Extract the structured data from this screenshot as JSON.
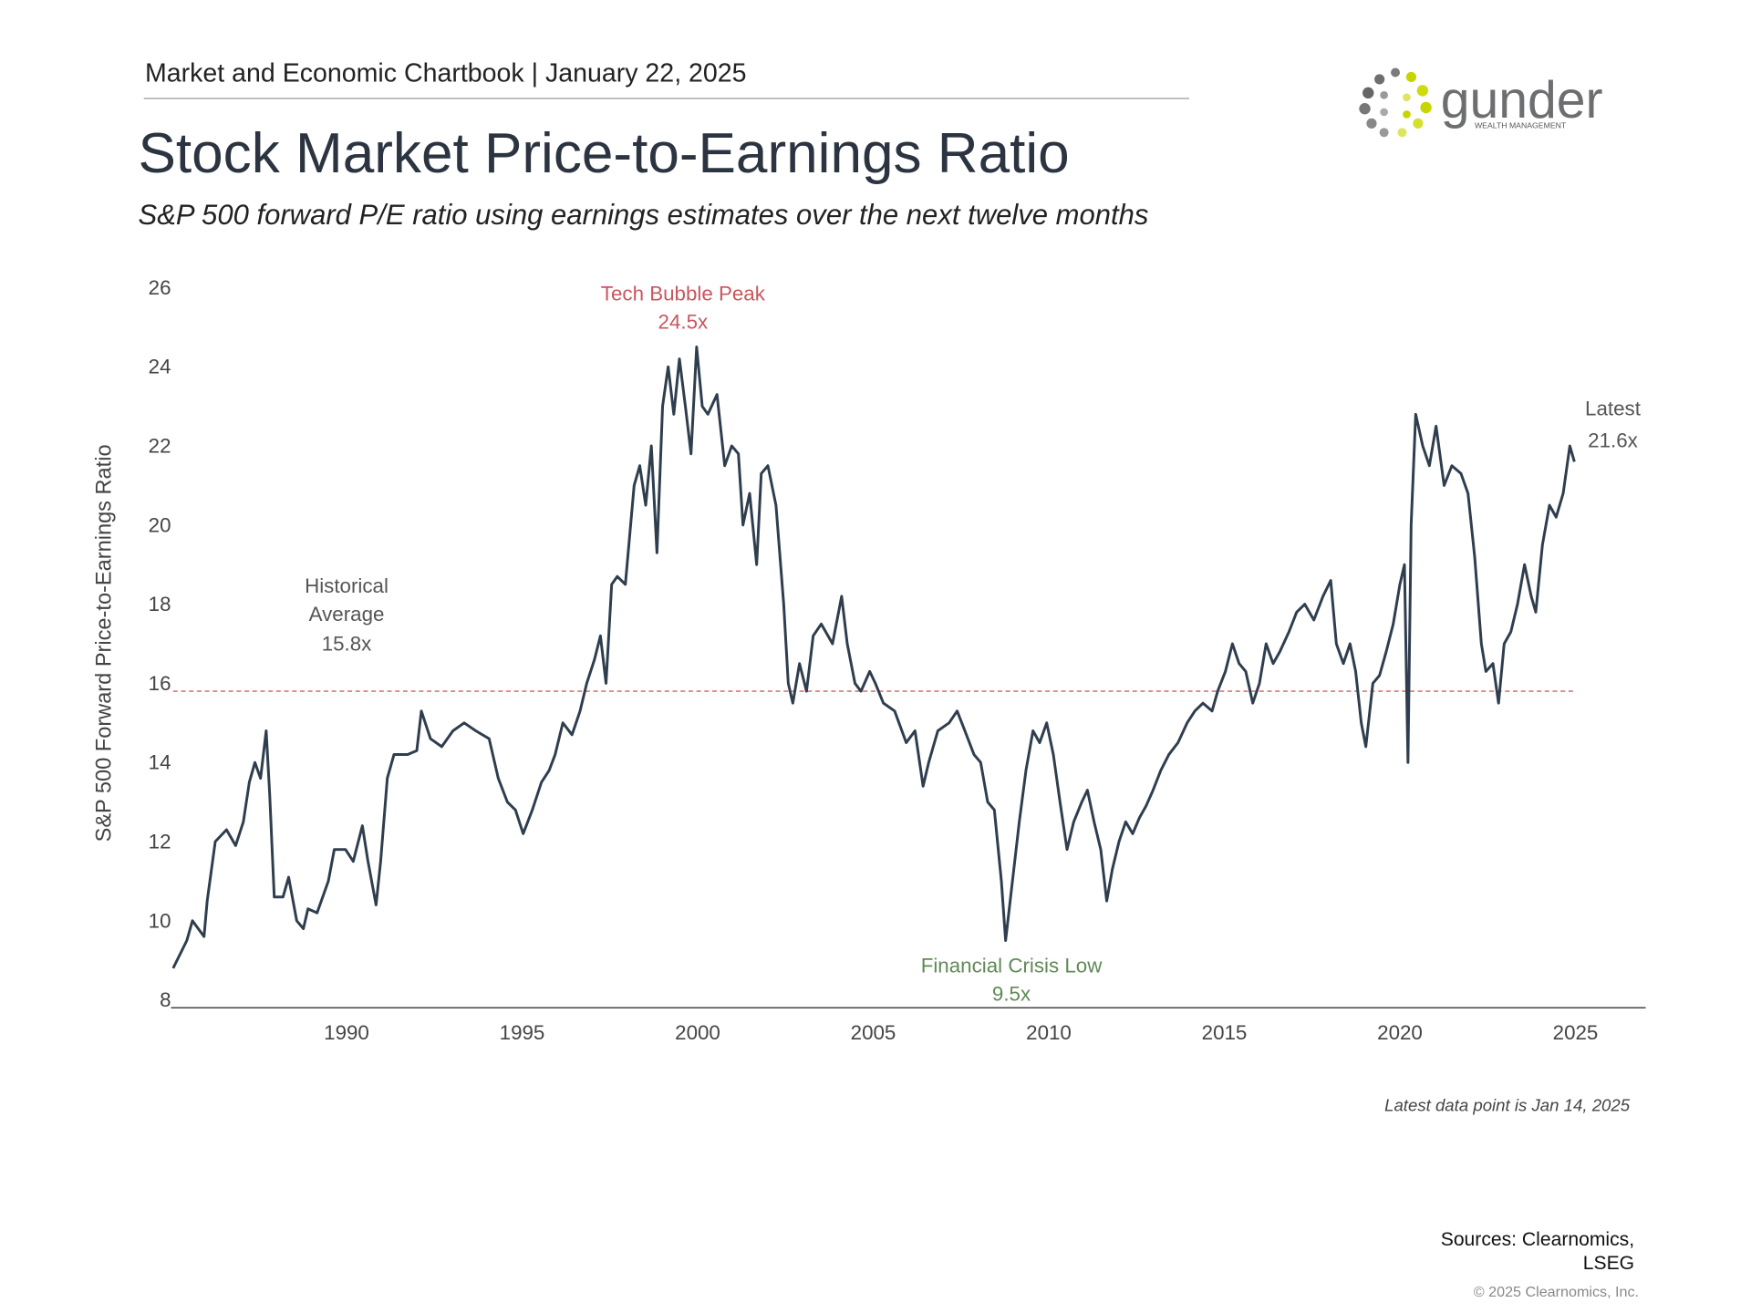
{
  "header": {
    "chartbook": "Market and Economic Chartbook | January 22, 2025",
    "title": "Stock Market Price-to-Earnings Ratio",
    "subtitle": "S&P 500 forward P/E ratio using earnings estimates over the next twelve months"
  },
  "logo": {
    "name": "gunder",
    "tagline": "WEALTH MANAGEMENT"
  },
  "chart_data": {
    "type": "line",
    "y_label": "S&P 500 Forward Price-to-Earnings Ratio",
    "x": [
      1985.06,
      1985.45,
      1985.61,
      1985.94,
      1986.03,
      1986.26,
      1986.58,
      1986.84,
      1987.06,
      1987.23,
      1987.39,
      1987.55,
      1987.71,
      1987.81,
      1987.94,
      1988.19,
      1988.35,
      1988.58,
      1988.77,
      1988.9,
      1989.16,
      1989.48,
      1989.65,
      1989.97,
      1990.19,
      1990.45,
      1990.61,
      1990.84,
      1990.97,
      1991.16,
      1991.35,
      1991.74,
      1992.0,
      1992.13,
      1992.39,
      1992.71,
      1993.03,
      1993.35,
      1993.68,
      1994.06,
      1994.32,
      1994.58,
      1994.81,
      1995.03,
      1995.29,
      1995.55,
      1995.77,
      1995.94,
      1996.16,
      1996.42,
      1996.65,
      1996.84,
      1997.06,
      1997.23,
      1997.39,
      1997.55,
      1997.71,
      1997.94,
      1998.19,
      1998.35,
      1998.52,
      1998.68,
      1998.84,
      1999.0,
      1999.16,
      1999.32,
      1999.48,
      1999.65,
      1999.81,
      1999.97,
      2000.13,
      2000.29,
      2000.55,
      2000.77,
      2000.97,
      2001.16,
      2001.29,
      2001.48,
      2001.68,
      2001.81,
      2002.0,
      2002.23,
      2002.45,
      2002.58,
      2002.71,
      2002.9,
      2003.1,
      2003.29,
      2003.52,
      2003.84,
      2004.1,
      2004.26,
      2004.48,
      2004.65,
      2004.9,
      2005.06,
      2005.29,
      2005.61,
      2005.94,
      2006.19,
      2006.42,
      2006.58,
      2006.84,
      2007.16,
      2007.39,
      2007.61,
      2007.87,
      2008.06,
      2008.26,
      2008.45,
      2008.65,
      2008.77,
      2008.9,
      2009.16,
      2009.35,
      2009.55,
      2009.74,
      2009.94,
      2010.13,
      2010.32,
      2010.52,
      2010.71,
      2010.94,
      2011.1,
      2011.29,
      2011.48,
      2011.65,
      2011.81,
      2012.0,
      2012.19,
      2012.39,
      2012.58,
      2012.77,
      2012.97,
      2013.19,
      2013.42,
      2013.68,
      2013.94,
      2014.16,
      2014.39,
      2014.65,
      2014.81,
      2015.03,
      2015.23,
      2015.42,
      2015.61,
      2015.81,
      2016.0,
      2016.19,
      2016.39,
      2016.58,
      2016.84,
      2017.06,
      2017.29,
      2017.55,
      2017.81,
      2018.03,
      2018.19,
      2018.39,
      2018.58,
      2018.74,
      2018.9,
      2019.03,
      2019.23,
      2019.42,
      2019.61,
      2019.81,
      2020.0,
      2020.13,
      2020.23,
      2020.32,
      2020.45,
      2020.65,
      2020.84,
      2021.03,
      2021.26,
      2021.48,
      2021.74,
      2021.94,
      2022.13,
      2022.32,
      2022.45,
      2022.65,
      2022.81,
      2022.97,
      2023.16,
      2023.35,
      2023.55,
      2023.74,
      2023.87,
      2024.06,
      2024.26,
      2024.45,
      2024.65,
      2024.84,
      2024.97
    ],
    "series": [
      {
        "color": "#2f3e4e",
        "values": [
          8.8,
          9.5,
          10.0,
          9.6,
          10.5,
          12.0,
          12.3,
          11.9,
          12.5,
          13.5,
          14.0,
          13.6,
          14.8,
          13.2,
          10.6,
          10.6,
          11.1,
          10.0,
          9.8,
          10.3,
          10.2,
          11.0,
          11.8,
          11.8,
          11.5,
          12.4,
          11.5,
          10.4,
          11.5,
          13.6,
          14.2,
          14.2,
          14.3,
          15.3,
          14.6,
          14.4,
          14.8,
          15.0,
          14.8,
          14.6,
          13.6,
          13.0,
          12.8,
          12.2,
          12.8,
          13.5,
          13.8,
          14.2,
          15.0,
          14.7,
          15.3,
          16.0,
          16.6,
          17.2,
          16.0,
          18.5,
          18.7,
          18.5,
          21.0,
          21.5,
          20.5,
          22.0,
          19.3,
          23.0,
          24.0,
          22.8,
          24.2,
          23.0,
          21.8,
          24.5,
          23.0,
          22.8,
          23.3,
          21.5,
          22.0,
          21.8,
          20.0,
          20.8,
          19.0,
          21.3,
          21.5,
          20.5,
          18.0,
          16.0,
          15.5,
          16.5,
          15.8,
          17.2,
          17.5,
          17.0,
          18.2,
          17.0,
          16.0,
          15.8,
          16.3,
          16.0,
          15.5,
          15.3,
          14.5,
          14.8,
          13.4,
          14.0,
          14.8,
          15.0,
          15.3,
          14.8,
          14.2,
          14.0,
          13.0,
          12.8,
          11.0,
          9.5,
          10.5,
          12.5,
          13.8,
          14.8,
          14.5,
          15.0,
          14.2,
          13.0,
          11.8,
          12.5,
          13.0,
          13.3,
          12.5,
          11.8,
          10.5,
          11.3,
          12.0,
          12.5,
          12.2,
          12.6,
          12.9,
          13.3,
          13.8,
          14.2,
          14.5,
          15.0,
          15.3,
          15.5,
          15.3,
          15.8,
          16.3,
          17.0,
          16.5,
          16.3,
          15.5,
          16.0,
          17.0,
          16.5,
          16.8,
          17.3,
          17.8,
          18.0,
          17.6,
          18.2,
          18.6,
          17.0,
          16.5,
          17.0,
          16.3,
          15.0,
          14.4,
          16.0,
          16.2,
          16.8,
          17.5,
          18.5,
          19.0,
          14.0,
          20.0,
          22.8,
          22.0,
          21.5,
          22.5,
          21.0,
          21.5,
          21.3,
          20.8,
          19.2,
          17.0,
          16.3,
          16.5,
          15.5,
          17.0,
          17.3,
          18.0,
          19.0,
          18.2,
          17.8,
          19.5,
          20.5,
          20.2,
          20.8,
          22.0,
          21.6
        ]
      }
    ],
    "xlim": [
      1985,
      2027
    ],
    "xticks": [
      1990,
      1995,
      2000,
      2005,
      2010,
      2015,
      2020,
      2025
    ],
    "ylim": [
      8,
      26
    ],
    "yticks": [
      8,
      10,
      12,
      14,
      16,
      18,
      20,
      22,
      24,
      26
    ],
    "grid": false,
    "average": {
      "lines": [
        "Historical",
        "Average"
      ],
      "value": 15.8,
      "label": "15.8x",
      "color": "#d9777b"
    },
    "annotations": [
      {
        "lines": [
          "Tech Bubble Peak"
        ],
        "value": 24.5,
        "label": "24.5x",
        "color": "#c9575e"
      },
      {
        "lines": [
          "Financial Crisis Low"
        ],
        "value": 9.5,
        "label": "9.5x",
        "color": "#5f8a55"
      },
      {
        "lines": [
          "Latest"
        ],
        "value": 21.6,
        "label": "21.6x",
        "color": "#555555"
      }
    ]
  },
  "footer": {
    "note": "Latest data point is Jan 14, 2025",
    "sources": [
      "Sources: Clearnomics,",
      "LSEG"
    ],
    "copyright": "© 2025 Clearnomics, Inc."
  }
}
